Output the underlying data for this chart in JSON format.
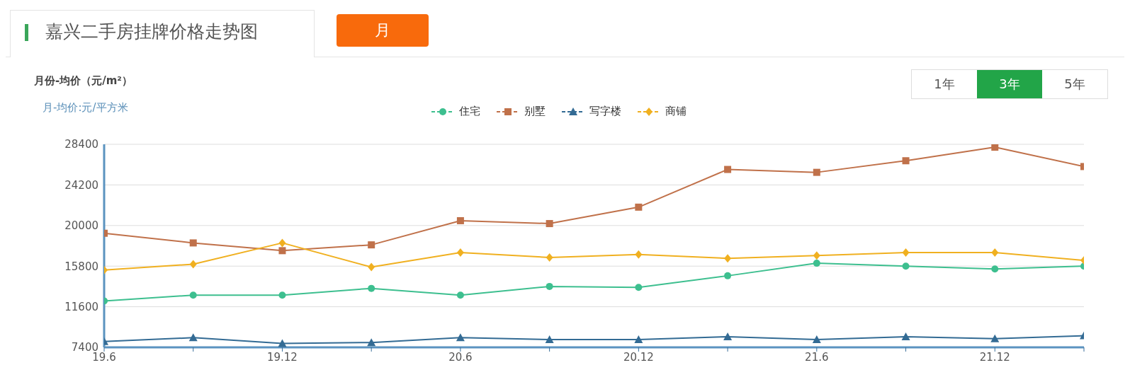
{
  "chart_data": {
    "type": "line",
    "title": "嘉兴二手房挂牌价格走势图",
    "subtitle": "月份-均价（元/m²）",
    "ylabel": "月-均价:元/平方米",
    "annotations": [
      "月",
      "1年",
      "3年",
      "5年"
    ],
    "categories": [
      "19.6",
      null,
      "19.12",
      null,
      "20.6",
      null,
      "20.12",
      null,
      "21.6",
      null,
      "21.12",
      null
    ],
    "series": [
      {
        "name": "住宅",
        "color": "#3dbf8f",
        "marker": "circle",
        "values": [
          12200,
          12800,
          12800,
          13500,
          12800,
          13700,
          13600,
          14800,
          16100,
          15800,
          15500,
          15800
        ]
      },
      {
        "name": "别墅",
        "color": "#c0714a",
        "marker": "square",
        "values": [
          19200,
          18200,
          17400,
          18000,
          20500,
          20200,
          21900,
          25800,
          25500,
          26700,
          28100,
          26100
        ]
      },
      {
        "name": "写字楼",
        "color": "#336b94",
        "marker": "triangle",
        "values": [
          8000,
          8400,
          7800,
          7900,
          8400,
          8200,
          8200,
          8500,
          8200,
          8500,
          8300,
          8600
        ]
      },
      {
        "name": "商铺",
        "color": "#f0b020",
        "marker": "diamond",
        "values": [
          15400,
          16000,
          18200,
          15700,
          17200,
          16700,
          17000,
          16600,
          16900,
          17200,
          17200,
          16400
        ]
      }
    ],
    "ylim": [
      7400,
      28400
    ],
    "yticks": [
      7400,
      11600,
      15800,
      20000,
      24200,
      28400
    ],
    "grid": "y",
    "legend": "top",
    "line_style": "solid"
  }
}
